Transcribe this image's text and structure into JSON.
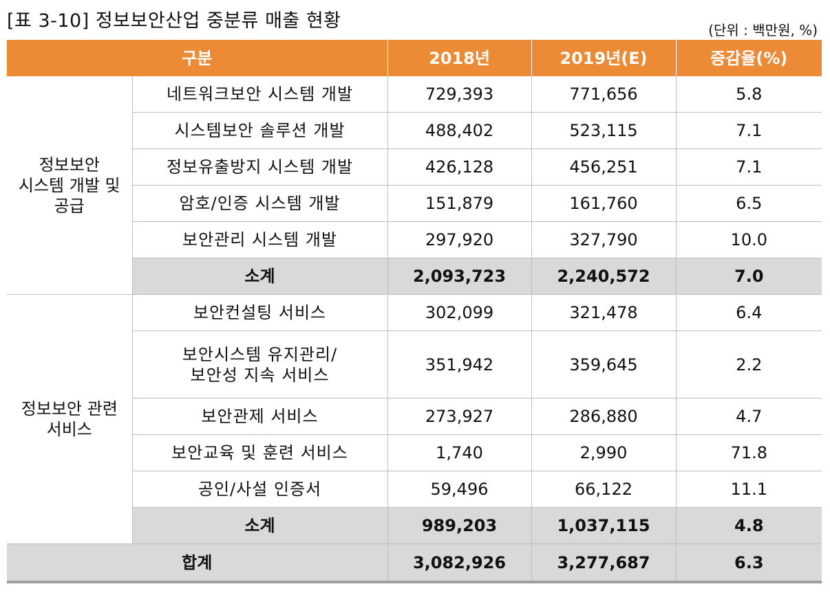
{
  "title": "[표 3-10] 정보보안산업 중분류 매출 현황",
  "unit": "(단위 : 백만원, %)",
  "headers": {
    "category": "구분",
    "y2018": "2018년",
    "y2019": "2019년(E)",
    "growth": "증감율(%)"
  },
  "groups": [
    {
      "name_lines": [
        "정보보안",
        "시스템 개발 및",
        "공급"
      ],
      "rows": [
        {
          "name_lines": [
            "네트워크보안 시스템 개발"
          ],
          "y2018": "729,393",
          "y2019": "771,656",
          "growth": "5.8"
        },
        {
          "name_lines": [
            "시스템보안 솔루션 개발"
          ],
          "y2018": "488,402",
          "y2019": "523,115",
          "growth": "7.1"
        },
        {
          "name_lines": [
            "정보유출방지 시스템 개발"
          ],
          "y2018": "426,128",
          "y2019": "456,251",
          "growth": "7.1"
        },
        {
          "name_lines": [
            "암호/인증 시스템 개발"
          ],
          "y2018": "151,879",
          "y2019": "161,760",
          "growth": "6.5"
        },
        {
          "name_lines": [
            "보안관리 시스템 개발"
          ],
          "y2018": "297,920",
          "y2019": "327,790",
          "growth": "10.0"
        }
      ],
      "subtotal": {
        "label": "소계",
        "y2018": "2,093,723",
        "y2019": "2,240,572",
        "growth": "7.0"
      }
    },
    {
      "name_lines": [
        "정보보안 관련",
        "서비스"
      ],
      "rows": [
        {
          "name_lines": [
            "보안컨설팅 서비스"
          ],
          "y2018": "302,099",
          "y2019": "321,478",
          "growth": "6.4"
        },
        {
          "name_lines": [
            "보안시스템 유지관리/",
            "보안성 지속 서비스"
          ],
          "y2018": "351,942",
          "y2019": "359,645",
          "growth": "2.2"
        },
        {
          "name_lines": [
            "보안관제 서비스"
          ],
          "y2018": "273,927",
          "y2019": "286,880",
          "growth": "4.7"
        },
        {
          "name_lines": [
            "보안교육 및 훈련 서비스"
          ],
          "y2018": "1,740",
          "y2019": "2,990",
          "growth": "71.8"
        },
        {
          "name_lines": [
            "공인/사설 인증서"
          ],
          "y2018": "59,496",
          "y2019": "66,122",
          "growth": "11.1"
        }
      ],
      "subtotal": {
        "label": "소계",
        "y2018": "989,203",
        "y2019": "1,037,115",
        "growth": "4.8"
      }
    }
  ],
  "total": {
    "label": "합계",
    "y2018": "3,082,926",
    "y2019": "3,277,687",
    "growth": "6.3"
  },
  "colors": {
    "header_bg": "#ec8a35",
    "subtotal_bg": "#d9d9d9"
  }
}
